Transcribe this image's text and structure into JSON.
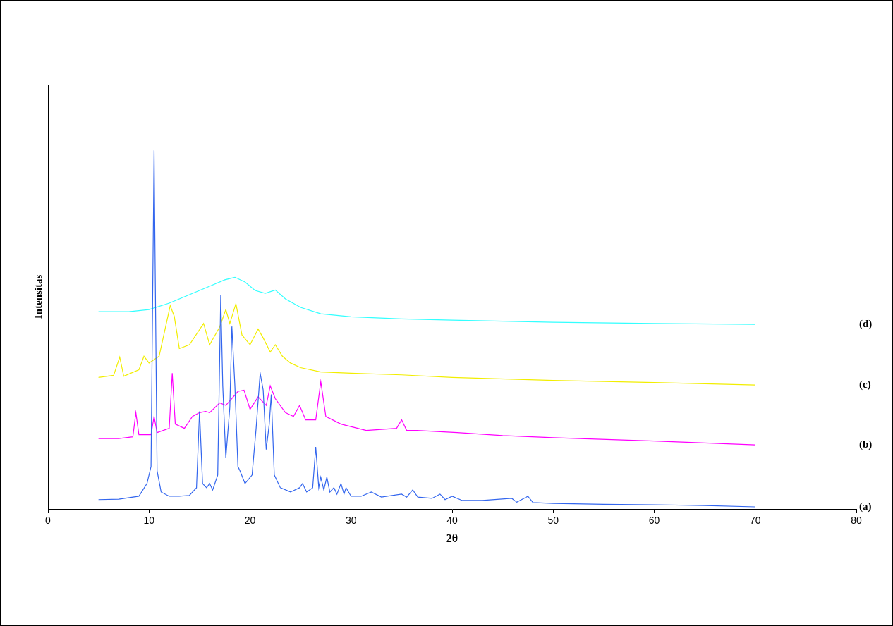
{
  "chart_data": {
    "type": "line",
    "x_label": "2θ",
    "y_label": "Intensitas",
    "xlim": [
      0,
      80
    ],
    "xticks": [
      0,
      10,
      20,
      30,
      40,
      50,
      60,
      70,
      80
    ],
    "ylim": [
      0,
      100
    ],
    "grid": false,
    "tick_labels": "x",
    "series": [
      {
        "name": "(a)",
        "color": "#3366ee",
        "x": [
          5,
          7,
          9,
          9.8,
          10.2,
          10.5,
          10.8,
          11.2,
          12,
          13,
          14,
          14.7,
          15.0,
          15.3,
          15.7,
          16.0,
          16.3,
          16.8,
          17.1,
          17.3,
          17.6,
          18.0,
          18.2,
          18.5,
          18.8,
          19.0,
          19.5,
          20.2,
          20.6,
          21.0,
          21.3,
          21.6,
          21.9,
          22.1,
          22.4,
          23,
          24,
          24.9,
          25.2,
          25.6,
          26.2,
          26.5,
          26.8,
          27.0,
          27.3,
          27.6,
          27.9,
          28.3,
          28.6,
          29.0,
          29.3,
          29.5,
          30,
          31,
          32,
          33,
          35,
          35.5,
          36.1,
          36.6,
          38,
          38.8,
          39.3,
          40,
          41,
          43,
          45.9,
          46.4,
          47.5,
          48,
          50,
          55,
          60,
          65,
          70
        ],
        "values": [
          2.2,
          2.3,
          3,
          6,
          10,
          84.5,
          9,
          4,
          3,
          3,
          3.2,
          5,
          23,
          6,
          5,
          6,
          4.5,
          8,
          50.4,
          29,
          12,
          24,
          43,
          29,
          10,
          9,
          6,
          8,
          19,
          32,
          28,
          14,
          20,
          27,
          8,
          5,
          4,
          5,
          6,
          4,
          5,
          14.6,
          5,
          7.5,
          4.5,
          7.5,
          4,
          5,
          3.5,
          6,
          3.5,
          5,
          3,
          3,
          4,
          2.8,
          3.5,
          2.8,
          4.5,
          2.8,
          2.5,
          3.5,
          2.2,
          3,
          2,
          2,
          2.5,
          1.6,
          3,
          1.5,
          1.3,
          1.1,
          1,
          0.8,
          0.5
        ]
      },
      {
        "name": "(b)",
        "color": "#ff00ff",
        "x": [
          5,
          7,
          8.4,
          8.7,
          9.0,
          10.2,
          10.5,
          10.8,
          12.0,
          12.3,
          12.6,
          13.5,
          14.3,
          15.0,
          15.6,
          16.0,
          17.0,
          17.6,
          18.2,
          18.8,
          19.4,
          20.0,
          20.8,
          21.6,
          22.0,
          22.5,
          23.5,
          24.3,
          24.9,
          25.5,
          26.5,
          27.0,
          27.5,
          29,
          31.5,
          34.5,
          35.0,
          35.5,
          36.5,
          40.5,
          45,
          50,
          60,
          70
        ],
        "values": [
          16.6,
          16.6,
          17,
          22.7,
          17.5,
          17.5,
          21.8,
          18,
          19,
          32,
          20,
          19,
          21.8,
          22.7,
          23,
          22.7,
          25,
          24.4,
          26,
          27.7,
          28,
          23.5,
          26.4,
          24.4,
          29,
          26,
          22.7,
          21.8,
          24.4,
          21,
          21,
          30,
          21.8,
          20,
          18.5,
          19,
          21,
          18.5,
          18.5,
          18,
          17.3,
          16.8,
          16,
          15.1
        ]
      },
      {
        "name": "(c)",
        "color": "#f2ee00",
        "x": [
          5,
          6.5,
          7.1,
          7.5,
          9,
          9.5,
          10.0,
          11,
          12.1,
          12.5,
          13,
          14,
          15.4,
          16,
          17,
          17.6,
          18.0,
          18.6,
          19.2,
          20.0,
          20.8,
          21.3,
          22.0,
          22.5,
          23.2,
          24,
          25,
          27,
          30,
          35,
          40,
          50,
          60,
          70
        ],
        "values": [
          31,
          31.5,
          35.8,
          31.3,
          32.8,
          36,
          34.4,
          36,
          47.9,
          45.4,
          37.8,
          38.7,
          43.7,
          38.7,
          42.9,
          47,
          43.7,
          48.4,
          41,
          38.7,
          42.4,
          40.3,
          37,
          38.7,
          36,
          34.4,
          33.3,
          32.3,
          32,
          31.6,
          31,
          30.3,
          29.8,
          29.2
        ]
      },
      {
        "name": "(d)",
        "color": "#33ffff",
        "x": [
          5,
          8,
          10,
          12,
          14,
          16,
          17.5,
          18.5,
          19.5,
          20.5,
          21.5,
          22.5,
          23.5,
          25,
          27,
          30,
          35,
          40,
          50,
          60,
          70
        ],
        "values": [
          46.5,
          46.5,
          47,
          48.5,
          50.5,
          52.5,
          54,
          54.6,
          53.5,
          51.5,
          50.8,
          51.6,
          49.5,
          47.5,
          46,
          45.3,
          44.8,
          44.5,
          44,
          43.7,
          43.5
        ]
      }
    ]
  }
}
